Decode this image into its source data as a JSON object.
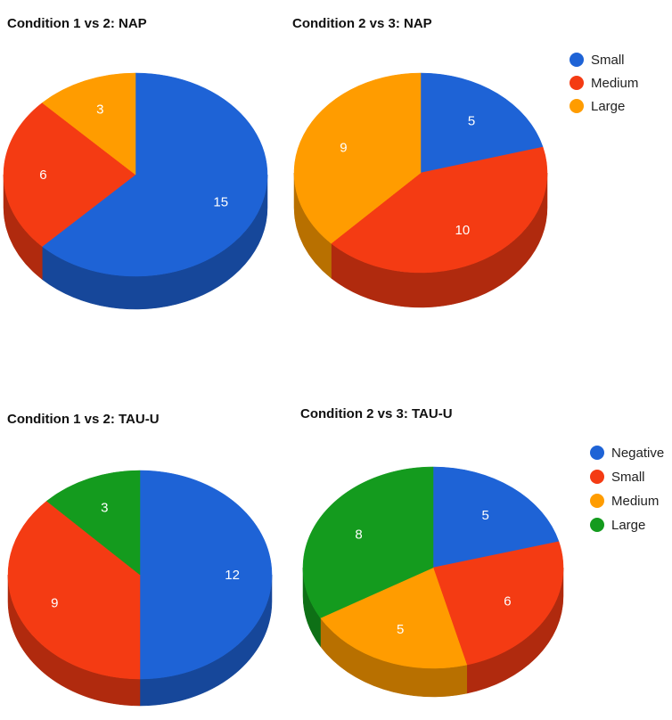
{
  "colors": {
    "blue": "#1e63d6",
    "red": "#f43b13",
    "orange": "#ff9c00",
    "green": "#149b1e"
  },
  "legends": [
    {
      "items": [
        {
          "label": "Small",
          "color": "#1e63d6"
        },
        {
          "label": "Medium",
          "color": "#f43b13"
        },
        {
          "label": "Large",
          "color": "#ff9c00"
        }
      ]
    },
    {
      "items": [
        {
          "label": "Negative",
          "color": "#1e63d6"
        },
        {
          "label": "Small",
          "color": "#f43b13"
        },
        {
          "label": "Medium",
          "color": "#ff9c00"
        },
        {
          "label": "Large",
          "color": "#149b1e"
        }
      ]
    }
  ],
  "chart_data": [
    {
      "type": "pie",
      "title": "Condition 1 vs 2: NAP",
      "style": "3d",
      "categories": [
        "Small",
        "Medium",
        "Large"
      ],
      "values": [
        15,
        6,
        3
      ],
      "colors": [
        "#1e63d6",
        "#f43b13",
        "#ff9c00"
      ]
    },
    {
      "type": "pie",
      "title": "Condition 2 vs 3: NAP",
      "style": "3d",
      "categories": [
        "Small",
        "Medium",
        "Large"
      ],
      "values": [
        5,
        10,
        9
      ],
      "colors": [
        "#1e63d6",
        "#f43b13",
        "#ff9c00"
      ]
    },
    {
      "type": "pie",
      "title": "Condition 1 vs 2: TAU-U",
      "style": "3d",
      "categories": [
        "Negative",
        "Small",
        "Large"
      ],
      "values": [
        12,
        9,
        3
      ],
      "colors": [
        "#1e63d6",
        "#f43b13",
        "#149b1e"
      ]
    },
    {
      "type": "pie",
      "title": "Condition 2 vs 3: TAU-U",
      "style": "3d",
      "categories": [
        "Negative",
        "Small",
        "Medium",
        "Large"
      ],
      "values": [
        5,
        6,
        5,
        8
      ],
      "colors": [
        "#1e63d6",
        "#f43b13",
        "#ff9c00",
        "#149b1e"
      ]
    }
  ]
}
